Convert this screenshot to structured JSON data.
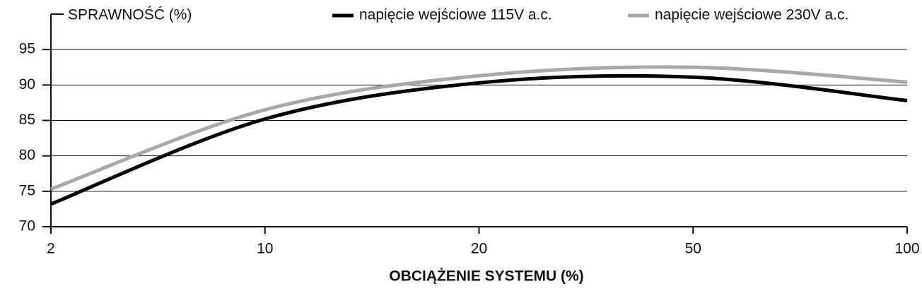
{
  "chart_data": {
    "type": "line",
    "y_label": "SPRAWNOŚĆ (%)",
    "x_label": "OBCIĄŻENIE SYSTEMU (%)",
    "categories": [
      "2",
      "10",
      "20",
      "50",
      "100"
    ],
    "series": [
      {
        "name": "napięcie wejściowe 115V a.c.",
        "color": "#000000",
        "values": [
          73.2,
          85.2,
          90.3,
          91.1,
          87.8
        ]
      },
      {
        "name": "napięcie wejściowe 230V a.c.",
        "color": "#a8a8a8",
        "values": [
          75.3,
          86.5,
          91.3,
          92.5,
          90.4
        ]
      }
    ],
    "ylim": [
      70,
      100
    ],
    "yticks": [
      70,
      75,
      80,
      85,
      90,
      95
    ],
    "grid": true
  }
}
